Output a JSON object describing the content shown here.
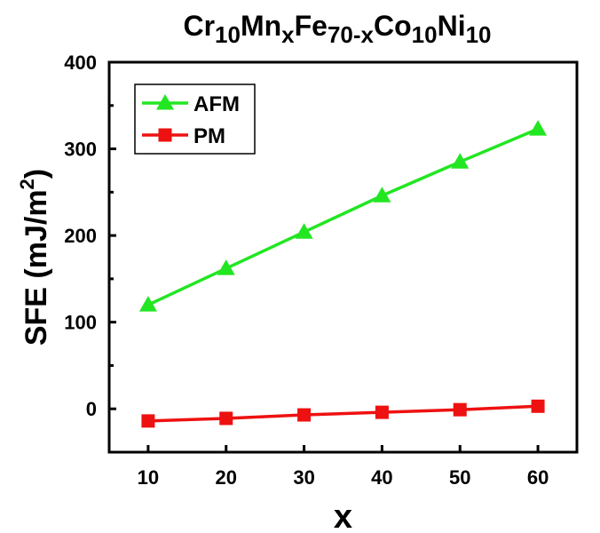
{
  "chart_data": {
    "type": "line",
    "title": {
      "parts": [
        {
          "text": "Cr",
          "sub": false
        },
        {
          "text": "10",
          "sub": true
        },
        {
          "text": "Mn",
          "sub": false
        },
        {
          "text": "x",
          "sub": true
        },
        {
          "text": "Fe",
          "sub": false
        },
        {
          "text": "70-x",
          "sub": true
        },
        {
          "text": "Co",
          "sub": false
        },
        {
          "text": "10",
          "sub": true
        },
        {
          "text": "Ni",
          "sub": false
        },
        {
          "text": "10",
          "sub": true
        }
      ]
    },
    "xlabel": "x",
    "ylabel": {
      "main": "SFE (mJ/m",
      "sup": "2",
      "end": ")"
    },
    "xlim": [
      5,
      65
    ],
    "ylim": [
      -50,
      400
    ],
    "xticks": [
      10,
      20,
      30,
      40,
      50,
      60
    ],
    "yticks": [
      0,
      100,
      200,
      300,
      400
    ],
    "x": [
      10,
      20,
      30,
      40,
      50,
      60
    ],
    "series": [
      {
        "name": "AFM",
        "values": [
          120,
          162,
          204,
          246,
          285,
          323
        ],
        "color": "#22e622",
        "marker": "triangle"
      },
      {
        "name": "PM",
        "values": [
          -14,
          -11,
          -7,
          -4,
          -1,
          3
        ],
        "color": "#ee1111",
        "marker": "square"
      }
    ],
    "legend_position": "top-left",
    "grid": false
  }
}
